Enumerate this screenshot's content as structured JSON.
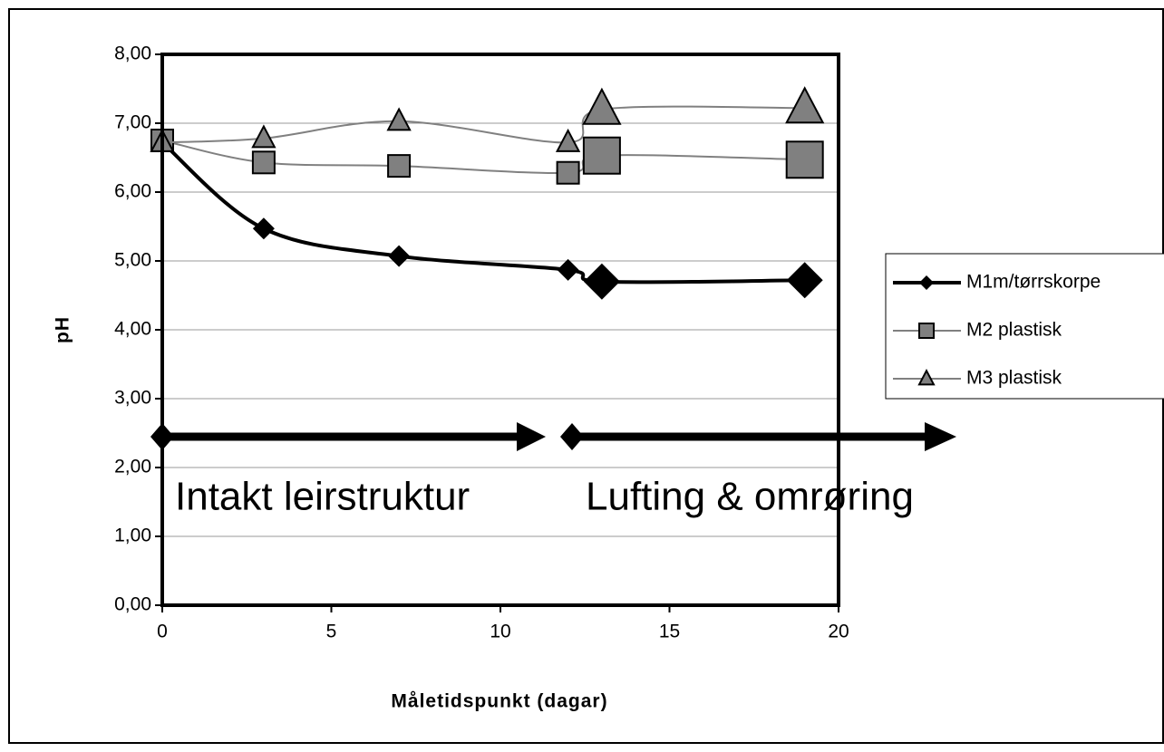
{
  "chart_data": {
    "type": "line",
    "x": [
      0,
      3,
      7,
      12,
      13,
      19
    ],
    "series": [
      {
        "name": "M1m/tørrskorpe",
        "color": "#000000",
        "marker": "diamond",
        "values": [
          6.72,
          5.47,
          5.07,
          4.87,
          4.7,
          4.72
        ]
      },
      {
        "name": "M2 plastisk",
        "color": "#808080",
        "marker": "square",
        "values": [
          6.75,
          6.43,
          6.38,
          6.28,
          6.53,
          6.47
        ]
      },
      {
        "name": "M3 plastisk",
        "color": "#808080",
        "marker": "triangle",
        "values": [
          6.72,
          6.78,
          7.03,
          6.72,
          7.2,
          7.22
        ]
      }
    ],
    "xlabel": "Måletidspunkt (dagar)",
    "ylabel": "pH",
    "xlim": [
      0,
      20
    ],
    "xticks": [
      0,
      5,
      10,
      15,
      20
    ],
    "ylim": [
      0,
      8
    ],
    "yticks": [
      {
        "value": 0,
        "label": "0,00"
      },
      {
        "value": 1,
        "label": "1,00"
      },
      {
        "value": 2,
        "label": "2,00"
      },
      {
        "value": 3,
        "label": "3,00"
      },
      {
        "value": 4,
        "label": "4,00"
      },
      {
        "value": 5,
        "label": "5,00"
      },
      {
        "value": 6,
        "label": "6,00"
      },
      {
        "value": 7,
        "label": "7,00"
      },
      {
        "value": 8,
        "label": "8,00"
      }
    ],
    "grid": true,
    "legend": "right",
    "annotations": [
      "Intakt leirstruktur",
      "Lufting & omrøring"
    ]
  }
}
